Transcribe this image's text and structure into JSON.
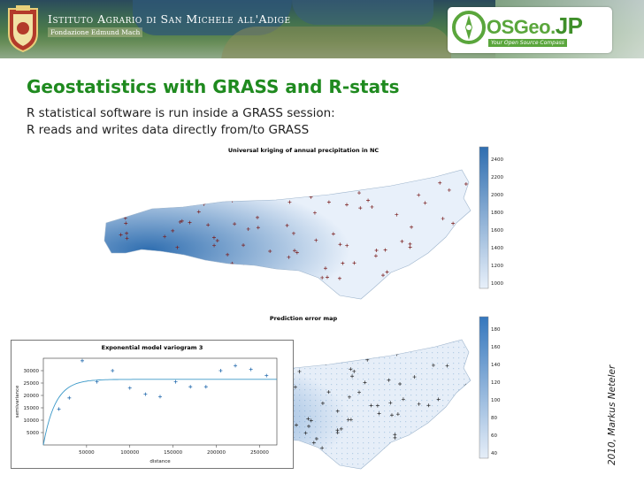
{
  "header": {
    "institution_name": "Istituto Agrario di San Michele all'Adige",
    "institution_sub": "Fondazione Edmund Mach",
    "osgeo_name": "OSGeo.",
    "osgeo_suffix": "JP",
    "osgeo_tagline": "Your Open Source Compass",
    "icons": [
      "institution-crest-icon",
      "osgeo-compass-icon"
    ]
  },
  "slide": {
    "title": "Geostatistics with GRASS and R-stats",
    "line1": "R statistical software is run inside a GRASS session:",
    "line2": "R reads and writes data directly from/to GRASS",
    "credit": "2010, Markus Neteler",
    "title_color": "#1f8a1f"
  },
  "chart_data": [
    {
      "type": "heatmap",
      "title": "Universal kriging of annual precipitation in NC",
      "legend_ticks": [
        "2400",
        "2200",
        "2000",
        "1800",
        "1600",
        "1400",
        "1200",
        "1000"
      ],
      "colors": {
        "low": "#e8f0fa",
        "high": "#2f6eb0"
      }
    },
    {
      "type": "heatmap",
      "title": "Prediction error map",
      "legend_ticks": [
        "180",
        "160",
        "140",
        "120",
        "100",
        "80",
        "60",
        "40"
      ],
      "colors": {
        "low": "#e6eef8",
        "high": "#3577bd"
      }
    },
    {
      "type": "scatter",
      "title": "Exponential model variogram 3",
      "xlabel": "distance",
      "ylabel": "semivariance",
      "x_ticks": [
        "50000",
        "100000",
        "150000",
        "200000",
        "250000"
      ],
      "y_ticks": [
        "5000",
        "10000",
        "15000",
        "20000",
        "25000",
        "30000"
      ],
      "xlim": [
        0,
        270000
      ],
      "ylim": [
        0,
        35000
      ],
      "points": [
        {
          "x": 18000,
          "y": 14500
        },
        {
          "x": 30000,
          "y": 19000
        },
        {
          "x": 45000,
          "y": 34000
        },
        {
          "x": 62000,
          "y": 25500
        },
        {
          "x": 80000,
          "y": 30000
        },
        {
          "x": 100000,
          "y": 23000
        },
        {
          "x": 118000,
          "y": 20500
        },
        {
          "x": 135000,
          "y": 19500
        },
        {
          "x": 153000,
          "y": 25500
        },
        {
          "x": 170000,
          "y": 23500
        },
        {
          "x": 188000,
          "y": 23500
        },
        {
          "x": 205000,
          "y": 30000
        },
        {
          "x": 222000,
          "y": 32000
        },
        {
          "x": 240000,
          "y": 30500
        },
        {
          "x": 258000,
          "y": 28000
        }
      ],
      "model": {
        "nugget": 0,
        "sill": 26500,
        "range": 14000
      }
    }
  ]
}
